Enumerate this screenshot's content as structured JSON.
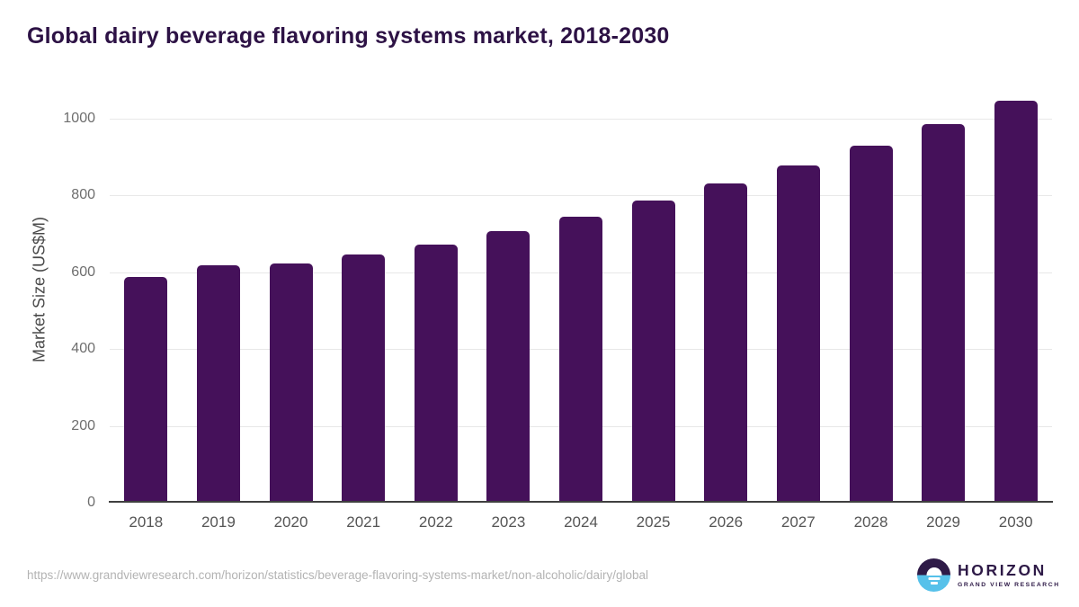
{
  "title": "Global dairy beverage flavoring systems market, 2018-2030",
  "source_url": "https://www.grandviewresearch.com/horizon/statistics/beverage-flavoring-systems-market/non-alcoholic/dairy/global",
  "logo": {
    "brand": "HORIZON",
    "sub_brand": "GRAND VIEW RESEARCH"
  },
  "colors": {
    "bar": "#45115a",
    "title": "#2d1245",
    "grid": "#e8e8e8",
    "axis_line": "#3f3f3f",
    "ytick": "#6e6e6e",
    "xtick": "#555555",
    "url": "#b3b3b3",
    "logo_purple": "#2e1a47",
    "logo_blue": "#56c1ea"
  },
  "chart_data": {
    "type": "bar",
    "title": "Global dairy beverage flavoring systems market, 2018-2030",
    "categories": [
      "2018",
      "2019",
      "2020",
      "2021",
      "2022",
      "2023",
      "2024",
      "2025",
      "2026",
      "2027",
      "2028",
      "2029",
      "2030"
    ],
    "values": [
      589,
      618,
      624,
      646,
      673,
      708,
      745,
      786,
      831,
      878,
      929,
      986,
      1046
    ],
    "xlabel": "",
    "ylabel": "Market Size (US$M)",
    "ylim": [
      0,
      1100
    ],
    "yticks": [
      0,
      200,
      400,
      600,
      800,
      1000
    ],
    "grid": "horizontal-only",
    "legend": false,
    "bar_color": "#45115a"
  }
}
